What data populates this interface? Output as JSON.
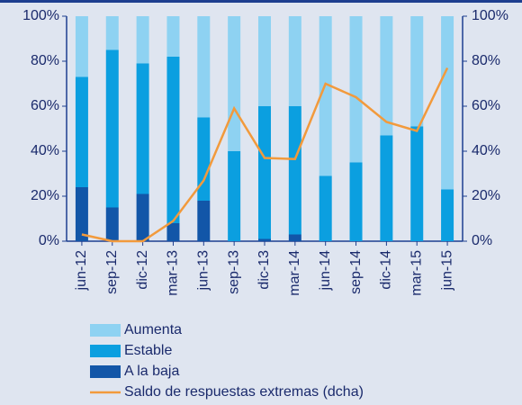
{
  "chart_data": {
    "type": "bar",
    "stacked": true,
    "categories": [
      "jun-12",
      "sep-12",
      "dic-12",
      "mar-13",
      "jun-13",
      "sep-13",
      "dic-13",
      "mar-14",
      "jun-14",
      "sep-14",
      "dic-14",
      "mar-15",
      "jun-15"
    ],
    "series": [
      {
        "name": "Aumenta",
        "color": "#8ed2f2",
        "values": [
          27,
          15,
          21,
          18,
          45,
          60,
          40,
          40,
          71,
          65,
          53,
          49,
          77
        ]
      },
      {
        "name": "Estable",
        "color": "#0b9fe0",
        "values": [
          49,
          70,
          58,
          74,
          37,
          40,
          59,
          57,
          29,
          35,
          47,
          51,
          23
        ]
      },
      {
        "name": "A la baja",
        "color": "#1256a8",
        "values": [
          24,
          15,
          21,
          8,
          18,
          0,
          1,
          3,
          0,
          0,
          0,
          0,
          0
        ]
      },
      {
        "name": "Saldo de respuestas extremas (dcha)",
        "color": "#f29a3c",
        "type": "line",
        "axis": "y2",
        "values": [
          3,
          0,
          0,
          9,
          27,
          59,
          37,
          36.5,
          70,
          64,
          53,
          49,
          77
        ]
      }
    ],
    "ylim": [
      0,
      100
    ],
    "yticks": [
      {
        "value": 0,
        "label": "0%"
      },
      {
        "value": 20,
        "label": "20%"
      },
      {
        "value": 40,
        "label": "40%"
      },
      {
        "value": 60,
        "label": "60%"
      },
      {
        "value": 80,
        "label": "80%"
      },
      {
        "value": 100,
        "label": "100%"
      }
    ],
    "y2lim": [
      0,
      100
    ],
    "y2ticks": [
      {
        "value": 0,
        "label": "0%"
      },
      {
        "value": 20,
        "label": "20%"
      },
      {
        "value": 40,
        "label": "40%"
      },
      {
        "value": 60,
        "label": "60%"
      },
      {
        "value": 80,
        "label": "80%"
      },
      {
        "value": 100,
        "label": "100%"
      }
    ],
    "grid": false
  }
}
